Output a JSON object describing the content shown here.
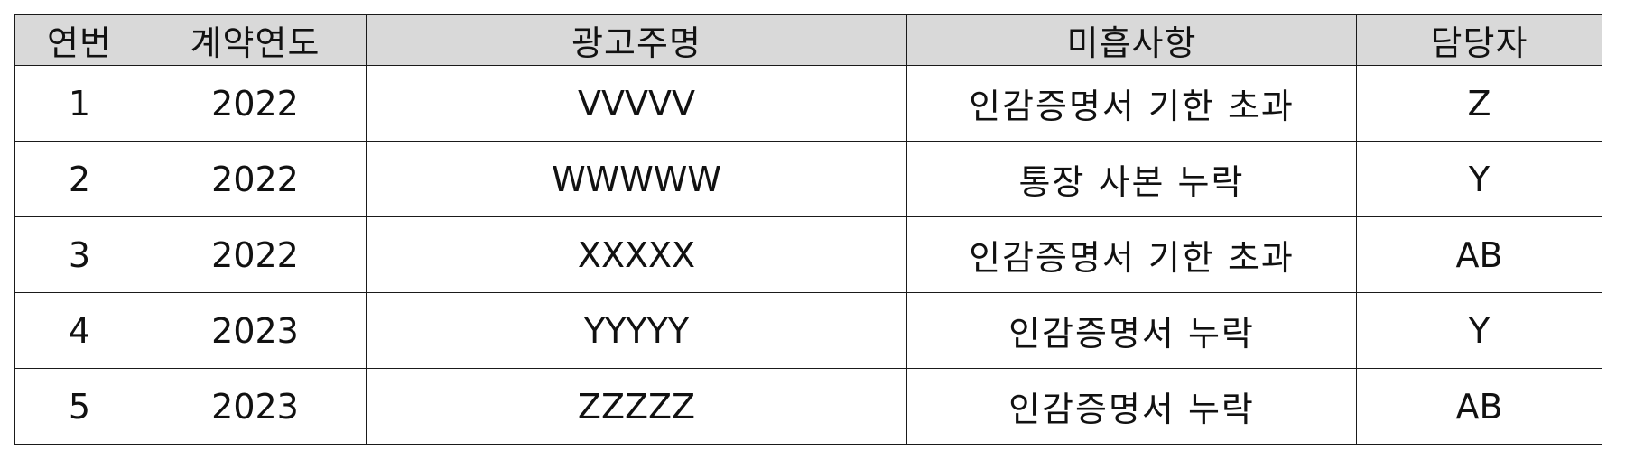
{
  "table": {
    "headers": [
      "연번",
      "계약연도",
      "광고주명",
      "미흡사항",
      "담당자"
    ],
    "rows": [
      [
        "1",
        "2022",
        "VVVVV",
        "인감증명서 기한 초과",
        "Z"
      ],
      [
        "2",
        "2022",
        "WWWWW",
        "통장 사본 누락",
        "Y"
      ],
      [
        "3",
        "2022",
        "XXXXX",
        "인감증명서 기한 초과",
        "AB"
      ],
      [
        "4",
        "2023",
        "YYYYY",
        "인감증명서 누락",
        "Y"
      ],
      [
        "5",
        "2023",
        "ZZZZZ",
        "인감증명서 누락",
        "AB"
      ]
    ]
  }
}
